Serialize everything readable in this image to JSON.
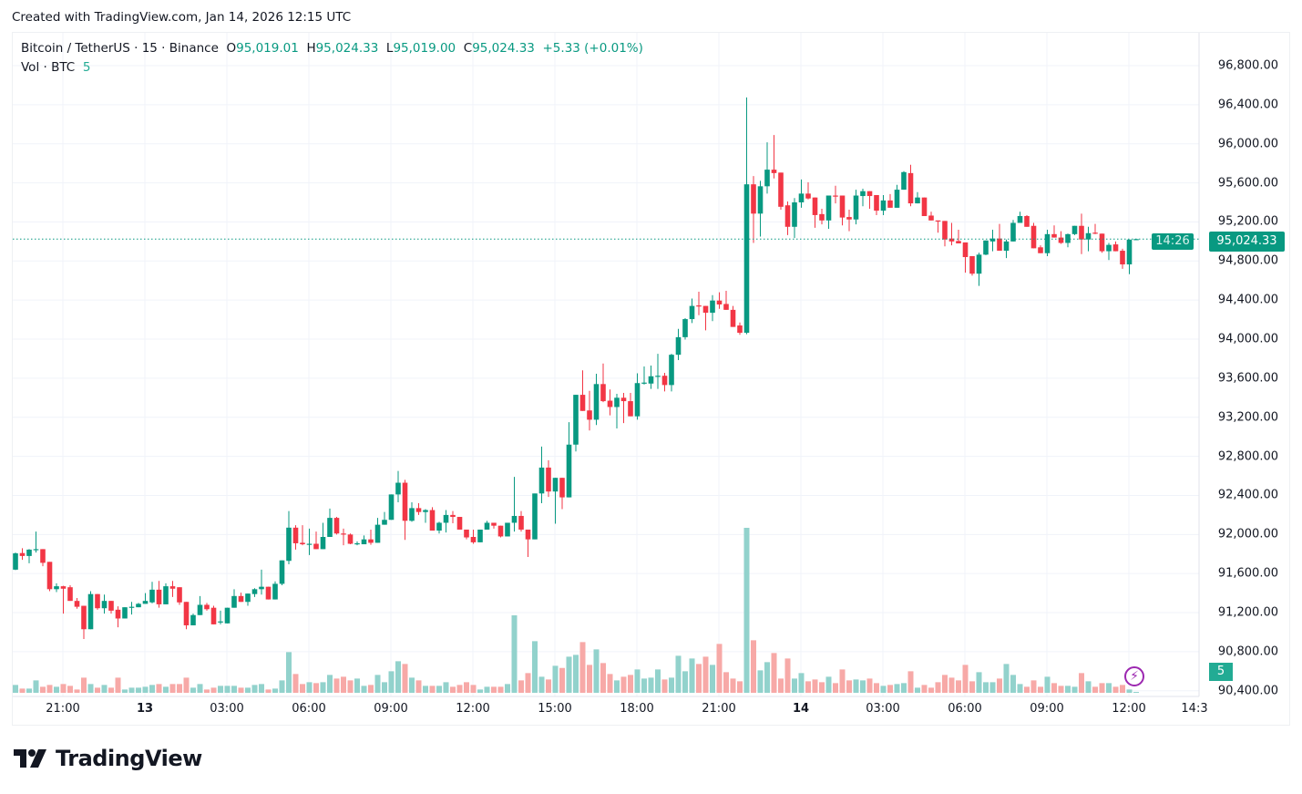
{
  "header": {
    "created": "Created with TradingView.com, Jan 14, 2026 12:15 UTC"
  },
  "legend": {
    "symbol": "Bitcoin / TetherUS · 15 · Binance",
    "o_label": "O",
    "o": "95,019.01",
    "h_label": "H",
    "h": "95,024.33",
    "l_label": "L",
    "l": "95,019.00",
    "c_label": "C",
    "c": "95,024.33",
    "change": "+5.33 (+0.01%)",
    "vol_label": "Vol · BTC",
    "vol": "5"
  },
  "price_label": {
    "price": "95,024.33",
    "countdown": "14:26"
  },
  "volume_label": "5",
  "logo": {
    "text": "TradingView"
  },
  "colors": {
    "up": "#089981",
    "down": "#f23645",
    "vol_up": "#92d2cc",
    "vol_down": "#f7a9a7",
    "grid": "#f0f3fa",
    "alert": "#9c27b0"
  },
  "icons": {
    "alert": "lightning-bolt-icon",
    "logo": "tradingview-logo-icon"
  },
  "chart_data": {
    "type": "candlestick",
    "interval": "15",
    "title": "Bitcoin / TetherUS · 15 · Binance",
    "ylim": [
      90400,
      96900
    ],
    "grid": true,
    "price_ticks": [
      "96,800.00",
      "96,400.00",
      "96,000.00",
      "95,600.00",
      "95,200.00",
      "94,800.00",
      "94,400.00",
      "94,000.00",
      "93,600.00",
      "93,200.00",
      "92,800.00",
      "92,400.00",
      "92,000.00",
      "91,600.00",
      "91,200.00",
      "90,800.00",
      "90,400.00"
    ],
    "time_ticks": [
      {
        "label": "21:00",
        "bold": false
      },
      {
        "label": "13",
        "bold": true
      },
      {
        "label": "03:00",
        "bold": false
      },
      {
        "label": "06:00",
        "bold": false
      },
      {
        "label": "09:00",
        "bold": false
      },
      {
        "label": "12:00",
        "bold": false
      },
      {
        "label": "15:00",
        "bold": false
      },
      {
        "label": "18:00",
        "bold": false
      },
      {
        "label": "21:00",
        "bold": false
      },
      {
        "label": "14",
        "bold": true
      },
      {
        "label": "03:00",
        "bold": false
      },
      {
        "label": "06:00",
        "bold": false
      },
      {
        "label": "09:00",
        "bold": false
      },
      {
        "label": "12:00",
        "bold": false
      },
      {
        "label": "14:3",
        "bold": false
      }
    ],
    "last_price": 95024.33,
    "columns": [
      "open",
      "high",
      "low",
      "close",
      "volume"
    ],
    "candles": [
      [
        91640,
        91815,
        91635,
        91807,
        95
      ],
      [
        91810,
        91860,
        91740,
        91780,
        51
      ],
      [
        91780,
        91850,
        91705,
        91845,
        51
      ],
      [
        91840,
        92030,
        91815,
        91850,
        150
      ],
      [
        91850,
        91850,
        91675,
        91710,
        73
      ],
      [
        91720,
        91720,
        91420,
        91440,
        95
      ],
      [
        91440,
        91500,
        91410,
        91470,
        73
      ],
      [
        91470,
        91475,
        91190,
        91445,
        106
      ],
      [
        91460,
        91480,
        91320,
        91320,
        84
      ],
      [
        91320,
        91350,
        91240,
        91260,
        40
      ],
      [
        91270,
        91270,
        90930,
        91030,
        183
      ],
      [
        91030,
        91420,
        91030,
        91390,
        106
      ],
      [
        91390,
        91390,
        91230,
        91245,
        62
      ],
      [
        91245,
        91385,
        91190,
        91320,
        95
      ],
      [
        91320,
        91320,
        91190,
        91220,
        62
      ],
      [
        91230,
        91265,
        91050,
        91140,
        183
      ],
      [
        91140,
        91255,
        91140,
        91255,
        40
      ],
      [
        91250,
        91310,
        91180,
        91260,
        62
      ],
      [
        91255,
        91300,
        91255,
        91290,
        62
      ],
      [
        91290,
        91400,
        91290,
        91320,
        73
      ],
      [
        91305,
        91515,
        91295,
        91435,
        95
      ],
      [
        91435,
        91525,
        91250,
        91285,
        106
      ],
      [
        91285,
        91500,
        91285,
        91470,
        73
      ],
      [
        91470,
        91525,
        91360,
        91445,
        106
      ],
      [
        91460,
        91460,
        91280,
        91305,
        106
      ],
      [
        91310,
        91310,
        91030,
        91070,
        183
      ],
      [
        91070,
        91190,
        91070,
        91175,
        62
      ],
      [
        91175,
        91370,
        91175,
        91280,
        106
      ],
      [
        91280,
        91300,
        91220,
        91235,
        40
      ],
      [
        91250,
        91270,
        91080,
        91080,
        62
      ],
      [
        91100,
        91220,
        91080,
        91110,
        84
      ],
      [
        91090,
        91250,
        91090,
        91250,
        84
      ],
      [
        91250,
        91440,
        91250,
        91370,
        84
      ],
      [
        91370,
        91405,
        91310,
        91310,
        62
      ],
      [
        91310,
        91395,
        91270,
        91395,
        62
      ],
      [
        91390,
        91450,
        91360,
        91440,
        95
      ],
      [
        91440,
        91640,
        91385,
        91465,
        106
      ],
      [
        91465,
        91465,
        91335,
        91335,
        40
      ],
      [
        91335,
        91520,
        91335,
        91495,
        51
      ],
      [
        91495,
        91735,
        91480,
        91735,
        150
      ],
      [
        91730,
        92240,
        91695,
        92070,
        491
      ],
      [
        92070,
        92095,
        91845,
        91910,
        227
      ],
      [
        91915,
        92095,
        91890,
        91900,
        106
      ],
      [
        91895,
        92060,
        91790,
        91905,
        128
      ],
      [
        91905,
        92030,
        91850,
        91850,
        117
      ],
      [
        91850,
        92120,
        91850,
        91975,
        128
      ],
      [
        91975,
        92265,
        91975,
        92170,
        216
      ],
      [
        92170,
        92180,
        92000,
        92010,
        172
      ],
      [
        92010,
        92060,
        91890,
        92000,
        194
      ],
      [
        92000,
        92010,
        91900,
        91905,
        150
      ],
      [
        91900,
        91930,
        91890,
        91910,
        172
      ],
      [
        91900,
        91990,
        91900,
        91950,
        84
      ],
      [
        91950,
        92050,
        91895,
        91915,
        95
      ],
      [
        91915,
        92170,
        91915,
        92100,
        216
      ],
      [
        92100,
        92230,
        92100,
        92150,
        128
      ],
      [
        92150,
        92410,
        92150,
        92410,
        260
      ],
      [
        92410,
        92650,
        92330,
        92530,
        381
      ],
      [
        92530,
        92560,
        91945,
        92140,
        348
      ],
      [
        92140,
        92330,
        92130,
        92270,
        183
      ],
      [
        92270,
        92320,
        92200,
        92230,
        150
      ],
      [
        92230,
        92260,
        92120,
        92250,
        84
      ],
      [
        92250,
        92280,
        92040,
        92040,
        84
      ],
      [
        92040,
        92130,
        92010,
        92120,
        84
      ],
      [
        92120,
        92250,
        92020,
        92200,
        128
      ],
      [
        92200,
        92240,
        92115,
        92180,
        73
      ],
      [
        92180,
        92180,
        92050,
        92050,
        95
      ],
      [
        92050,
        92050,
        91950,
        91970,
        128
      ],
      [
        91975,
        92050,
        91905,
        91920,
        95
      ],
      [
        91920,
        92050,
        91920,
        92050,
        40
      ],
      [
        92050,
        92140,
        92050,
        92120,
        73
      ],
      [
        92120,
        92120,
        92060,
        92090,
        73
      ],
      [
        92090,
        92090,
        91970,
        91980,
        73
      ],
      [
        91980,
        92120,
        91980,
        92120,
        106
      ],
      [
        92120,
        92590,
        92030,
        92190,
        935
      ],
      [
        92190,
        92240,
        92030,
        92050,
        150
      ],
      [
        92050,
        92050,
        91770,
        91950,
        238
      ],
      [
        91950,
        92420,
        91950,
        92420,
        623
      ],
      [
        92420,
        92900,
        92320,
        92685,
        194
      ],
      [
        92685,
        92760,
        92385,
        92440,
        161
      ],
      [
        92440,
        92580,
        92110,
        92580,
        326
      ],
      [
        92580,
        92580,
        92260,
        92380,
        300
      ],
      [
        92380,
        93150,
        92380,
        92920,
        436
      ],
      [
        92920,
        93430,
        92850,
        93430,
        458
      ],
      [
        93430,
        93680,
        93265,
        93265,
        612
      ],
      [
        93270,
        93470,
        93065,
        93175,
        337
      ],
      [
        93175,
        93645,
        93120,
        93540,
        524
      ],
      [
        93540,
        93750,
        93355,
        93365,
        359
      ],
      [
        93370,
        93485,
        93220,
        93305,
        227
      ],
      [
        93305,
        93440,
        93085,
        93400,
        150
      ],
      [
        93400,
        93450,
        93140,
        93365,
        194
      ],
      [
        93365,
        93450,
        93210,
        93210,
        216
      ],
      [
        93210,
        93650,
        93175,
        93550,
        282
      ],
      [
        93545,
        93720,
        93535,
        93555,
        172
      ],
      [
        93545,
        93730,
        93490,
        93620,
        183
      ],
      [
        93615,
        93850,
        93490,
        93625,
        282
      ],
      [
        93625,
        93655,
        93465,
        93530,
        161
      ],
      [
        93530,
        93850,
        93465,
        93840,
        183
      ],
      [
        93840,
        94105,
        93785,
        94020,
        447
      ],
      [
        94020,
        94215,
        93995,
        94205,
        260
      ],
      [
        94205,
        94415,
        94165,
        94340,
        414
      ],
      [
        94345,
        94485,
        94245,
        94335,
        348
      ],
      [
        94340,
        94340,
        94090,
        94270,
        436
      ],
      [
        94270,
        94450,
        94185,
        94395,
        337
      ],
      [
        94395,
        94480,
        94310,
        94355,
        590
      ],
      [
        94360,
        94495,
        94300,
        94300,
        249
      ],
      [
        94300,
        94340,
        94125,
        94125,
        172
      ],
      [
        94140,
        94170,
        94045,
        94065,
        139
      ],
      [
        94065,
        96475,
        94050,
        95585,
        1991
      ],
      [
        95585,
        95670,
        94985,
        95285,
        634
      ],
      [
        95285,
        95620,
        95050,
        95565,
        271
      ],
      [
        95565,
        96015,
        95490,
        95735,
        370
      ],
      [
        95735,
        96090,
        95645,
        95700,
        480
      ],
      [
        95705,
        95705,
        95325,
        95355,
        172
      ],
      [
        95370,
        95410,
        95065,
        95150,
        414
      ],
      [
        95150,
        95445,
        95035,
        95400,
        172
      ],
      [
        95400,
        95635,
        95345,
        95490,
        238
      ],
      [
        95490,
        95605,
        95430,
        95440,
        139
      ],
      [
        95450,
        95450,
        95140,
        95270,
        161
      ],
      [
        95280,
        95335,
        95175,
        95215,
        128
      ],
      [
        95215,
        95470,
        95130,
        95470,
        194
      ],
      [
        95470,
        95570,
        95390,
        95460,
        117
      ],
      [
        95470,
        95470,
        95165,
        95245,
        282
      ],
      [
        95250,
        95325,
        95105,
        95225,
        150
      ],
      [
        95225,
        95530,
        95175,
        95470,
        161
      ],
      [
        95465,
        95540,
        95360,
        95515,
        150
      ],
      [
        95515,
        95515,
        95335,
        95465,
        172
      ],
      [
        95475,
        95475,
        95270,
        95315,
        117
      ],
      [
        95315,
        95475,
        95270,
        95420,
        84
      ],
      [
        95420,
        95485,
        95345,
        95345,
        95
      ],
      [
        95345,
        95580,
        95345,
        95530,
        106
      ],
      [
        95530,
        95720,
        95530,
        95710,
        117
      ],
      [
        95700,
        95785,
        95360,
        95390,
        260
      ],
      [
        95390,
        95505,
        95390,
        95450,
        62
      ],
      [
        95450,
        95450,
        95260,
        95260,
        95
      ],
      [
        95265,
        95305,
        95215,
        95215,
        62
      ],
      [
        95215,
        95215,
        95090,
        95205,
        128
      ],
      [
        95210,
        95210,
        94950,
        95020,
        216
      ],
      [
        95030,
        95190,
        94960,
        95000,
        183
      ],
      [
        95005,
        95120,
        94980,
        94980,
        150
      ],
      [
        94990,
        94990,
        94680,
        94840,
        337
      ],
      [
        94850,
        94850,
        94650,
        94670,
        139
      ],
      [
        94670,
        94885,
        94545,
        94865,
        249
      ],
      [
        94865,
        95010,
        94860,
        95010,
        128
      ],
      [
        95000,
        95120,
        94900,
        95030,
        128
      ],
      [
        95030,
        95180,
        94905,
        94905,
        172
      ],
      [
        94905,
        95020,
        94830,
        95000,
        348
      ],
      [
        95000,
        95220,
        95000,
        95190,
        216
      ],
      [
        95190,
        95305,
        95190,
        95260,
        106
      ],
      [
        95260,
        95270,
        95150,
        95150,
        73
      ],
      [
        95160,
        95190,
        94930,
        94930,
        150
      ],
      [
        94940,
        94960,
        94880,
        94880,
        73
      ],
      [
        94880,
        95120,
        94850,
        95075,
        194
      ],
      [
        95075,
        95165,
        95040,
        95040,
        117
      ],
      [
        95040,
        95105,
        94975,
        94985,
        84
      ],
      [
        94985,
        95080,
        94940,
        95075,
        84
      ],
      [
        95075,
        95160,
        95065,
        95160,
        73
      ],
      [
        95160,
        95285,
        94870,
        95020,
        238
      ],
      [
        95020,
        95150,
        94900,
        95085,
        139
      ],
      [
        95090,
        95180,
        95075,
        95080,
        73
      ],
      [
        95080,
        95080,
        94885,
        94900,
        117
      ],
      [
        94900,
        94985,
        94810,
        94965,
        117
      ],
      [
        94970,
        95000,
        94900,
        94900,
        73
      ],
      [
        94905,
        94925,
        94720,
        94765,
        95
      ],
      [
        94765,
        95019,
        94665,
        95019,
        40
      ],
      [
        95019.01,
        95024.33,
        95019.0,
        95024.33,
        5
      ]
    ]
  }
}
